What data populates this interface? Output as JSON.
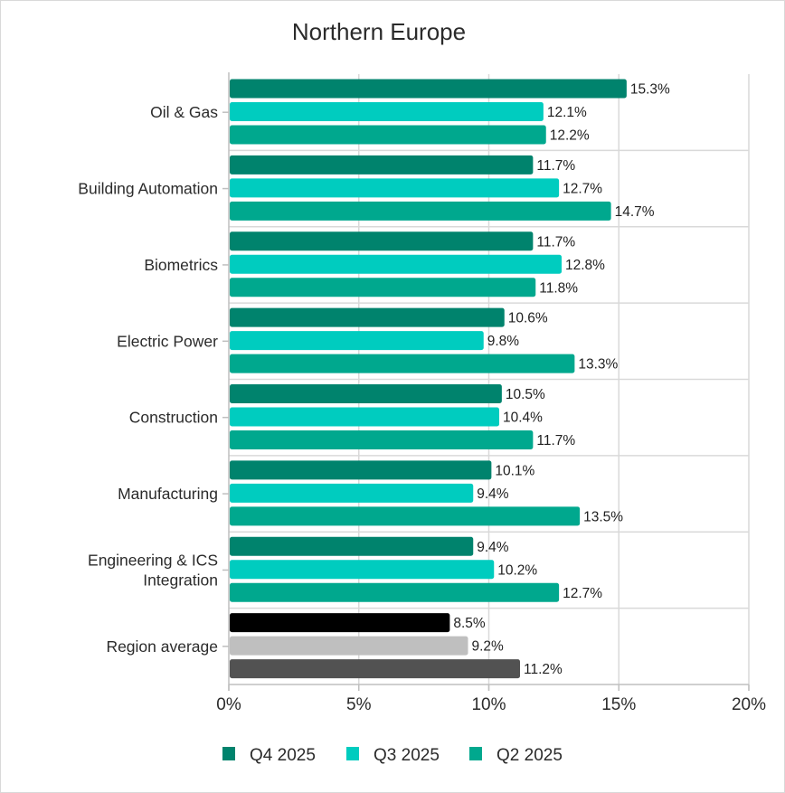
{
  "chart_data": {
    "type": "bar",
    "orientation": "horizontal",
    "title": "Northern Europe",
    "xlabel": "",
    "ylabel": "",
    "xlim": [
      0,
      20
    ],
    "x_ticks": [
      0,
      5,
      10,
      15,
      20
    ],
    "x_tick_labels": [
      "0%",
      "5%",
      "10%",
      "15%",
      "20%"
    ],
    "value_suffix": "%",
    "grid": true,
    "legend_position": "bottom",
    "categories": [
      "Oil & Gas",
      "Building Automation",
      "Biometrics",
      "Electric Power",
      "Construction",
      "Manufacturing",
      "Engineering & ICS Integration",
      "Region average"
    ],
    "category_label_lines": [
      [
        "Oil & Gas"
      ],
      [
        "Building Automation"
      ],
      [
        "Biometrics"
      ],
      [
        "Electric Power"
      ],
      [
        "Construction"
      ],
      [
        "Manufacturing"
      ],
      [
        "Engineering & ICS",
        "Integration"
      ],
      [
        "Region average"
      ]
    ],
    "series": [
      {
        "name": "Q4 2025",
        "color": "#00836d",
        "values": [
          15.3,
          11.7,
          11.7,
          10.6,
          10.5,
          10.1,
          9.4,
          8.5
        ]
      },
      {
        "name": "Q3 2025",
        "color": "#00ccbf",
        "values": [
          12.1,
          12.7,
          12.8,
          9.8,
          10.4,
          9.4,
          10.2,
          9.2
        ]
      },
      {
        "name": "Q2 2025",
        "color": "#00a88e",
        "values": [
          12.2,
          14.7,
          11.8,
          13.3,
          11.7,
          13.5,
          12.7,
          11.2
        ]
      }
    ],
    "value_labels": [
      [
        "15.3%",
        "11.7%",
        "11.7%",
        "10.6%",
        "10.5%",
        "10.1%",
        "9.4%",
        "8.5%"
      ],
      [
        "12.1%",
        "12.7%",
        "12.8%",
        "9.8%",
        "10.4%",
        "9.4%",
        "10.2%",
        "9.2%"
      ],
      [
        "12.2%",
        "14.7%",
        "11.8%",
        "13.3%",
        "11.7%",
        "13.5%",
        "12.7%",
        "11.2%"
      ]
    ],
    "highlight_category": {
      "name": "Region average",
      "colors": [
        "#000000",
        "#bfbfbf",
        "#525252"
      ]
    }
  },
  "colors": {
    "grid": "#d9d9d9",
    "axis": "#bfbfbf",
    "text": "#2b2b2b"
  }
}
